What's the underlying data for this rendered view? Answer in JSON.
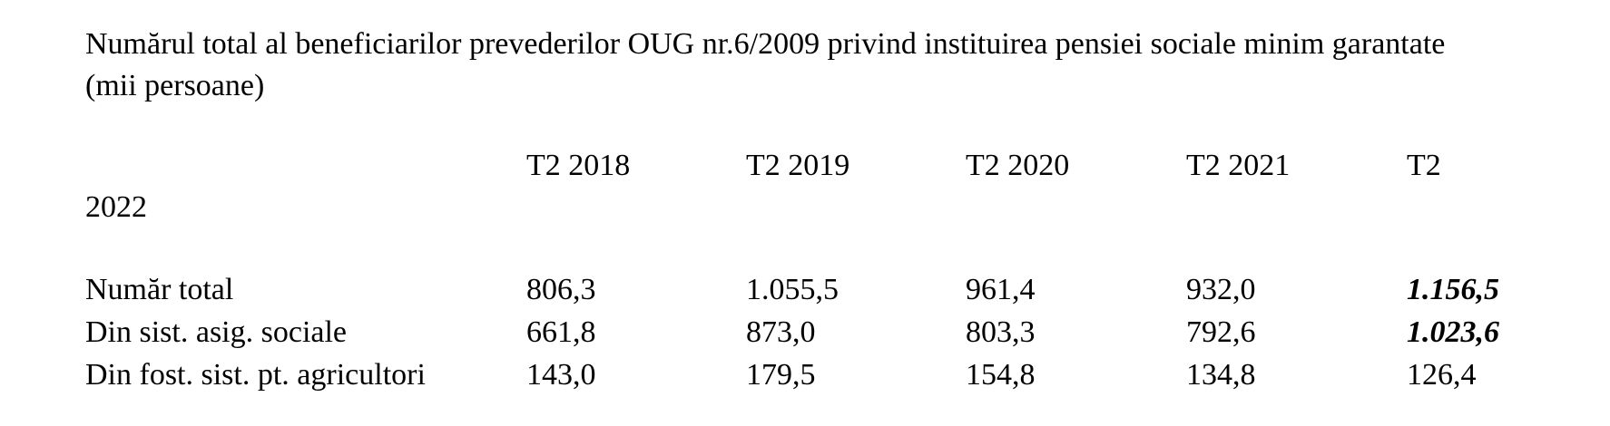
{
  "title": "Numărul total al beneficiarilor prevederilor OUG nr.6/2009 privind instituirea pensiei sociale minim garantate (mii persoane)",
  "table": {
    "columns": [
      "T2 2018",
      "T2 2019",
      "T2 2020",
      "T2 2021",
      "T2"
    ],
    "column_overflow": "2022",
    "rows": [
      {
        "label": "Număr total",
        "values": [
          "806,3",
          "1.055,5",
          "961,4",
          "932,0",
          "1.156,5"
        ],
        "bold_italic": [
          4
        ]
      },
      {
        "label": "Din sist. asig. sociale",
        "values": [
          "661,8",
          "873,0",
          "803,3",
          "792,6",
          "1.023,6"
        ],
        "bold_italic": [
          4
        ]
      },
      {
        "label": "Din fost. sist. pt. agricultori",
        "values": [
          "143,0",
          "179,5",
          "154,8",
          "134,8",
          "126,4"
        ],
        "bold_italic": []
      }
    ]
  }
}
